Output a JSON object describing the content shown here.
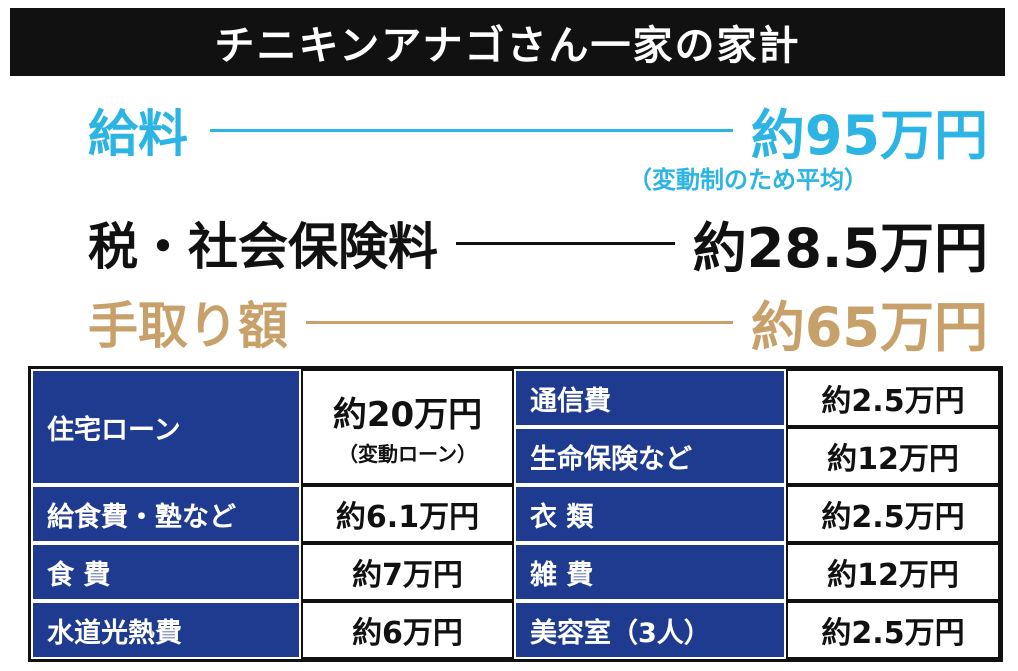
{
  "title": "チニキンアナゴさん一家の家計",
  "summary": {
    "salary": {
      "label": "給料",
      "value": "約95万円",
      "note": "（変動制のため平均）"
    },
    "tax": {
      "label": "税・社会保険料",
      "value": "約28.5万円"
    },
    "takehome": {
      "label": "手取り額",
      "value": "約65万円"
    }
  },
  "expenses_left": [
    {
      "category": "住宅ローン",
      "value": "約20万円",
      "note": "（変動ローン）"
    },
    {
      "category": "給食費・塾など",
      "value": "約6.1万円"
    },
    {
      "category": "食 費",
      "value": "約7万円"
    },
    {
      "category": "水道光熱費",
      "value": "約6万円"
    }
  ],
  "expenses_right": [
    {
      "category": "通信費",
      "value": "約2.5万円"
    },
    {
      "category": "生命保険など",
      "value": "約12万円"
    },
    {
      "category": "衣 類",
      "value": "約2.5万円"
    },
    {
      "category": "雑 費",
      "value": "約12万円"
    },
    {
      "category": "美容室（3人）",
      "value": "約2.5万円"
    }
  ],
  "colors": {
    "salary": "#2bb4e4",
    "takehome": "#c8a06a",
    "category_bg": "#1f3b8f",
    "title_bg": "#111111"
  }
}
